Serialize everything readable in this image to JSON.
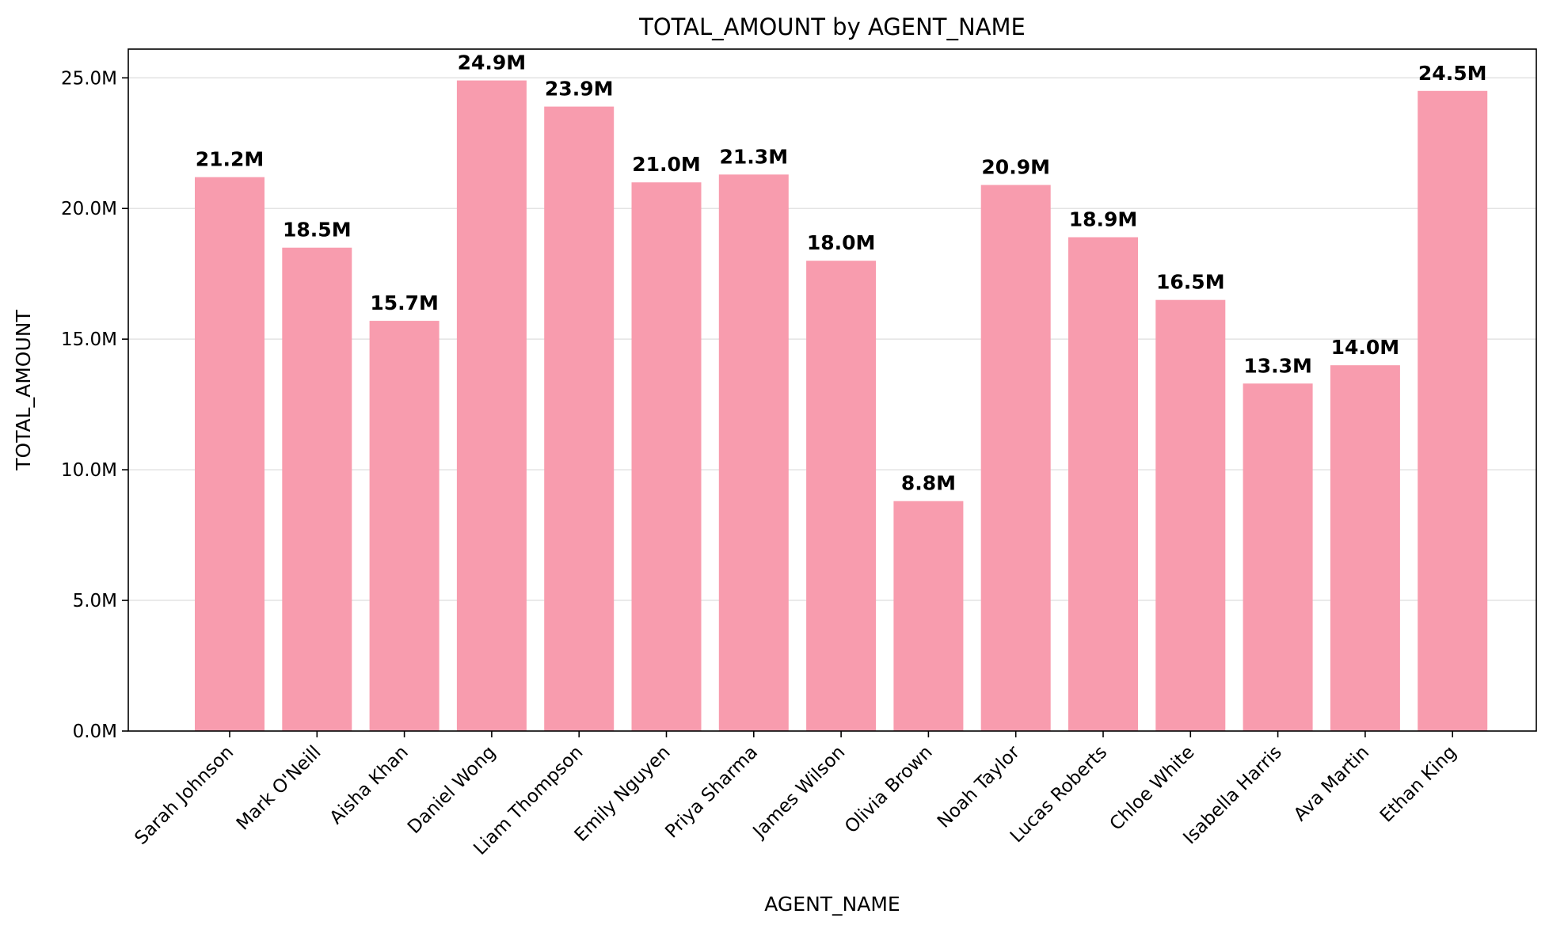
{
  "chart_data": {
    "type": "bar",
    "title": "TOTAL_AMOUNT by AGENT_NAME",
    "xlabel": "AGENT_NAME",
    "ylabel": "TOTAL_AMOUNT",
    "categories": [
      "Sarah Johnson",
      "Mark O'Neill",
      "Aisha Khan",
      "Daniel Wong",
      "Liam Thompson",
      "Emily Nguyen",
      "Priya Sharma",
      "James Wilson",
      "Olivia Brown",
      "Noah Taylor",
      "Lucas Roberts",
      "Chloe White",
      "Isabella Harris",
      "Ava Martin",
      "Ethan King"
    ],
    "values": [
      21.2,
      18.5,
      15.7,
      24.9,
      23.9,
      21.0,
      21.3,
      18.0,
      8.8,
      20.9,
      18.9,
      16.5,
      13.3,
      14.0,
      24.5
    ],
    "value_labels": [
      "21.2M",
      "18.5M",
      "15.7M",
      "24.9M",
      "23.9M",
      "21.0M",
      "21.3M",
      "18.0M",
      "8.8M",
      "20.9M",
      "18.9M",
      "16.5M",
      "13.3M",
      "14.0M",
      "24.5M"
    ],
    "unit": "M",
    "ylim": [
      0,
      26.1
    ],
    "yticks": [
      0,
      5,
      10,
      15,
      20,
      25
    ],
    "ytick_labels": [
      "0.0M",
      "5.0M",
      "10.0M",
      "15.0M",
      "20.0M",
      "25.0M"
    ],
    "grid": "horizontal",
    "legend": "none",
    "bar_color": "#f89cae"
  }
}
